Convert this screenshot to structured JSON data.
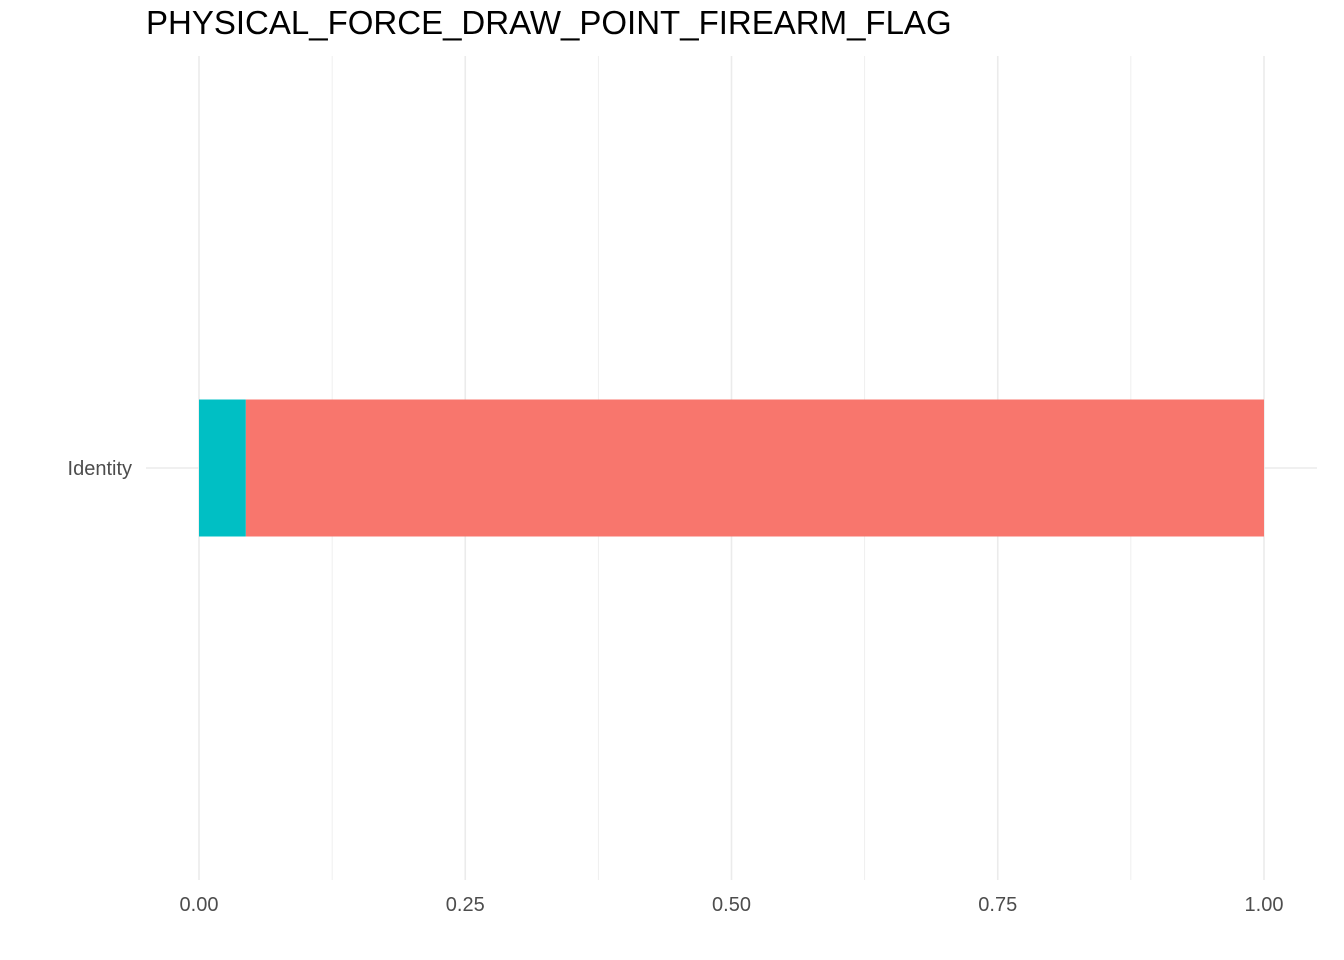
{
  "chart_data": {
    "type": "bar",
    "orientation": "horizontal",
    "stacked": true,
    "title": "PHYSICAL_FORCE_DRAW_POINT_FIREARM_FLAG",
    "xlabel": "",
    "ylabel": "",
    "categories": [
      "Identity"
    ],
    "series": [
      {
        "color": "#00BFC4",
        "values": [
          0.044
        ]
      },
      {
        "color": "#F8766D",
        "values": [
          0.956
        ]
      }
    ],
    "xlim": [
      0,
      1
    ],
    "x_ticks": [
      0,
      0.25,
      0.5,
      0.75,
      1
    ],
    "x_tick_labels": [
      "0.00",
      "0.25",
      "0.50",
      "0.75",
      "1.00"
    ],
    "grid": true,
    "legend": "none"
  }
}
